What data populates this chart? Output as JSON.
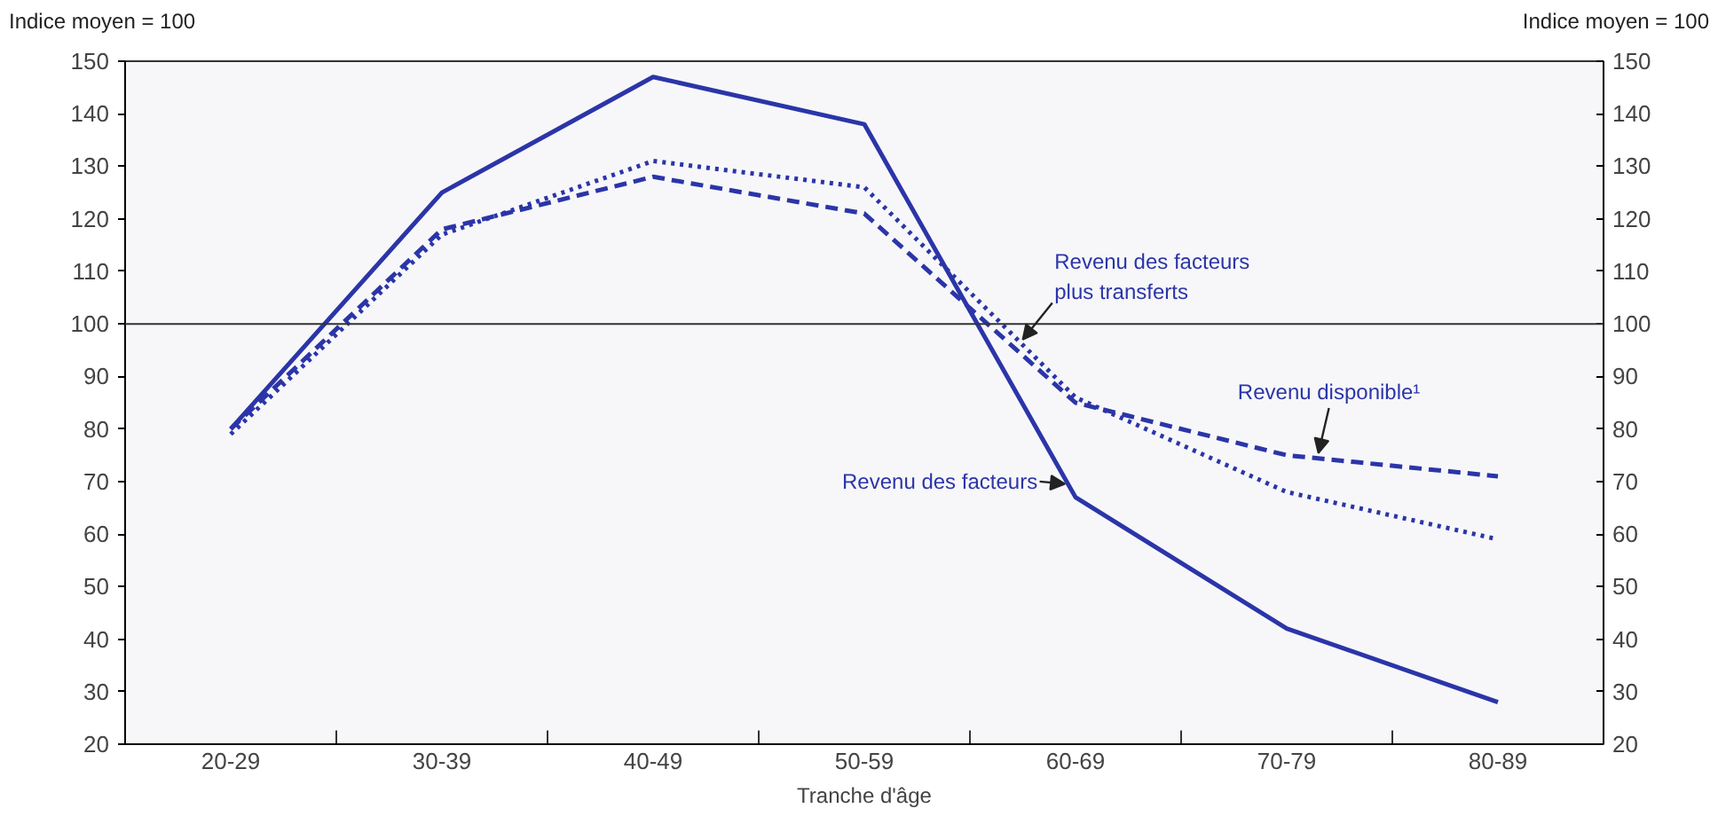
{
  "chart_data": {
    "type": "line",
    "xlabel": "Tranche d'âge",
    "ylabel": "Indice moyen = 100",
    "y2label": "Indice moyen = 100",
    "categories": [
      "20-29",
      "30-39",
      "40-49",
      "50-59",
      "60-69",
      "70-79",
      "80-89"
    ],
    "series": [
      {
        "name": "Revenu des facteurs",
        "color": "#2b35a8",
        "line_style": "solid",
        "values": [
          80,
          125,
          147,
          138,
          67,
          42,
          28
        ]
      },
      {
        "name": "Revenu des facteurs plus transferts",
        "color": "#2b35a8",
        "line_style": "dotted",
        "values": [
          79,
          117,
          131,
          126,
          86,
          68,
          59
        ]
      },
      {
        "name": "Revenu disponible¹",
        "color": "#2b35a8",
        "line_style": "dashed",
        "values": [
          80,
          118,
          128,
          121,
          85,
          75,
          71
        ]
      }
    ],
    "ylim": [
      20,
      150
    ],
    "yticks": [
      20,
      30,
      40,
      50,
      60,
      70,
      80,
      90,
      100,
      110,
      120,
      130,
      140,
      150
    ],
    "y2lim": [
      20,
      150
    ],
    "y2ticks": [
      20,
      30,
      40,
      50,
      60,
      70,
      80,
      90,
      100,
      110,
      120,
      130,
      140,
      150
    ],
    "ref_lines": [
      {
        "axis": "y",
        "value": 100,
        "color": "#333333"
      }
    ],
    "grid": false
  }
}
